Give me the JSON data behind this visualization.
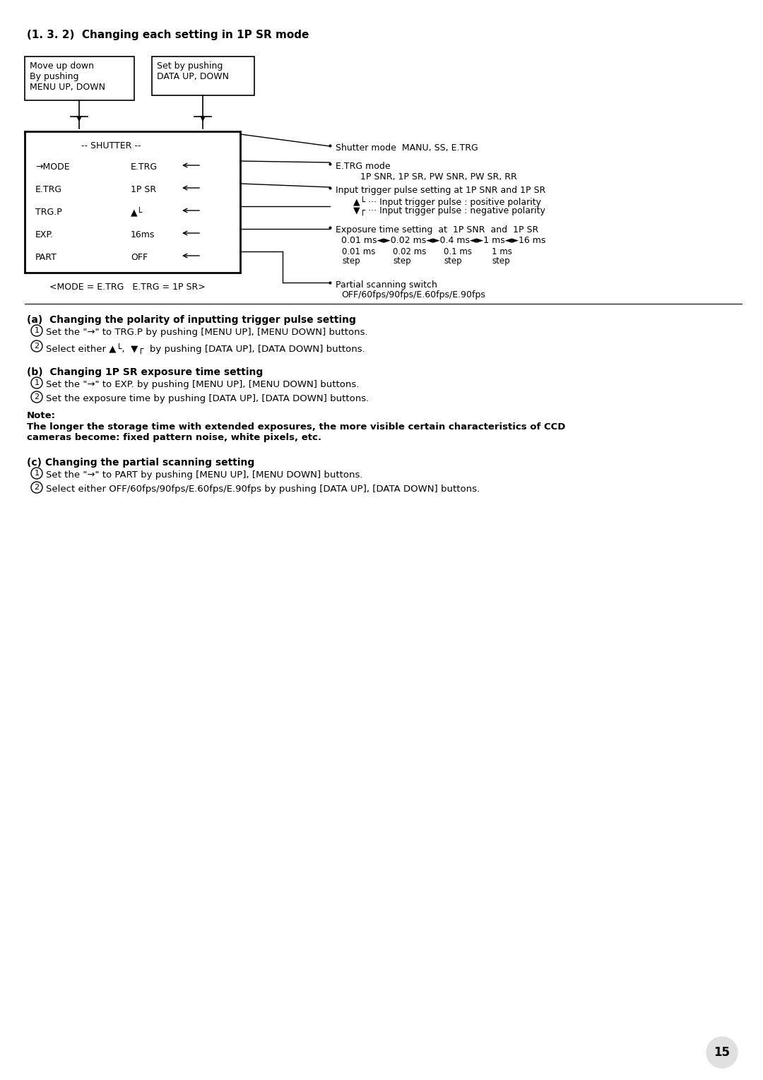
{
  "bg_color": "#ffffff",
  "title": "(1. 3. 2)  Changing each setting in 1P SR mode",
  "title_fontsize": 11,
  "title_bold": true,
  "box1_text": "Move up down\nBy pushing\nMENU UP, DOWN",
  "box2_text": "Set by pushing\nDATA UP, DOWN",
  "shutter_label": "-- SHUTTER --",
  "menu_items_left": [
    "→MODE",
    "E.TRG",
    "TRG.P",
    "EXP.",
    "PART"
  ],
  "menu_items_right": [
    "E.TRG",
    "1P SR",
    "▲└",
    "16ms",
    "OFF"
  ],
  "caption": "<MODE = E.TRG   E.TRG = 1P SR>",
  "bullet1_title": "Shutter mode  MANU, SS, E.TRG",
  "bullet2_title": "E.TRG mode",
  "bullet2_sub": "1P SNR, 1P SR, PW SNR, PW SR, RR",
  "bullet3_title": "Input trigger pulse setting at 1P SNR and 1P SR",
  "bullet3_sub1": "▲└ ··· Input trigger pulse : positive polarity",
  "bullet3_sub2": "▼┌ ··· Input trigger pulse : negative polarity",
  "bullet4_title": "Exposure time setting  at  1P SNR  and  1P SR",
  "bullet4_line1": "0.01 ms◄►0.02 ms◄►0.4 ms◄►1 ms◄►16 ms",
  "bullet4_line2_cols": [
    "0.01 ms",
    "0.02 ms",
    "0.1 ms",
    "1 ms"
  ],
  "bullet4_line3_cols": [
    "step",
    "step",
    "step",
    "step"
  ],
  "bullet5_title": "Partial scanning switch",
  "bullet5_sub": "OFF/60fps/90fps/E.60fps/E.90fps",
  "section_a_title": "(a)  Changing the polarity of inputting trigger pulse setting",
  "section_a_1": "Set the \"→\" to TRG.P by pushing [MENU UP], [MENU DOWN] buttons.",
  "section_a_2": "Select either ▲└,  ▼┌  by pushing [DATA UP], [DATA DOWN] buttons.",
  "section_b_title": "(b)  Changing 1P SR exposure time setting",
  "section_b_1": "Set the \"→\" to EXP. by pushing [MENU UP], [MENU DOWN] buttons.",
  "section_b_2": "Set the exposure time by pushing [DATA UP], [DATA DOWN] buttons.",
  "section_b_note_label": "Note:",
  "section_b_note_body": "The longer the storage time with extended exposures, the more visible certain characteristics of CCD\ncameras become: fixed pattern noise, white pixels, etc.",
  "section_c_title": "(c) Changing the partial scanning setting",
  "section_c_1": "Set the \"→\" to PART by pushing [MENU UP], [MENU DOWN] buttons.",
  "section_c_2": "Select either OFF/60fps/90fps/E.60fps/E.90fps by pushing [DATA UP], [DATA DOWN] buttons.",
  "page_number": "15"
}
